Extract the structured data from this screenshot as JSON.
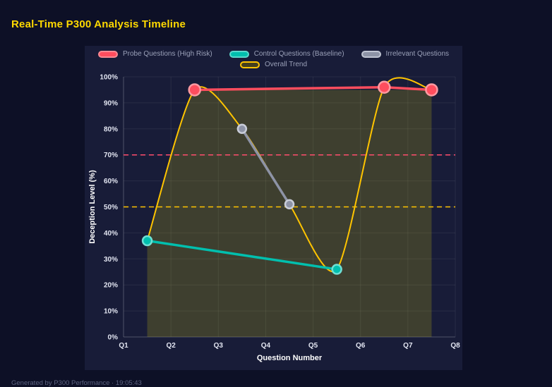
{
  "page": {
    "title": "Real-Time P300 Analysis Timeline",
    "footer": "Generated by P300 Performance · 19:05:43"
  },
  "colors": {
    "page_bg": "#0d1026",
    "panel_bg": "#181c38",
    "grid": "rgba(255,255,255,0.07)",
    "axis_line": "rgba(255,255,255,0.18)",
    "tick_text": "#e2e5f1",
    "axis_title": "#ffffff",
    "legend_text": "#9aa0b8",
    "title_text": "#ffd900",
    "footer_text": "#5d6380",
    "band_fill": "rgba(200,190,20,0.22)"
  },
  "chart_data": {
    "type": "line",
    "title": "Real-Time P300 Analysis Timeline",
    "xlabel": "Question Number",
    "ylabel": "Deception Level (%)",
    "x_range": [
      1,
      8
    ],
    "y_range": [
      0,
      100
    ],
    "x_ticks": [
      "Q1",
      "Q2",
      "Q3",
      "Q4",
      "Q5",
      "Q6",
      "Q7",
      "Q8"
    ],
    "y_ticks": [
      "0%",
      "10%",
      "20%",
      "30%",
      "40%",
      "50%",
      "60%",
      "70%",
      "80%",
      "90%",
      "100%"
    ],
    "grid": true,
    "legend_position": "top",
    "series": [
      {
        "name": "Probe Questions (High Risk)",
        "color": "#ff4d5e",
        "point_border": "#ff9aa2",
        "line_width": 3.5,
        "point_radius": 8,
        "smooth": false,
        "points": [
          [
            2.5,
            95
          ],
          [
            6.5,
            96
          ],
          [
            7.5,
            95
          ]
        ]
      },
      {
        "name": "Control Questions (Baseline)",
        "color": "#00bfae",
        "point_border": "#6fdfd4",
        "line_width": 3.5,
        "point_radius": 6.5,
        "smooth": false,
        "points": [
          [
            1.5,
            37
          ],
          [
            5.5,
            26
          ]
        ]
      },
      {
        "name": "Irrelevant Questions",
        "color": "#8d93a6",
        "point_border": "#c9cdd9",
        "line_width": 3.5,
        "point_radius": 6,
        "smooth": false,
        "points": [
          [
            3.5,
            80
          ],
          [
            4.5,
            51
          ]
        ]
      },
      {
        "name": "Overall Trend",
        "color": "#ffc400",
        "point_border": "#ffc400",
        "line_width": 2,
        "point_radius": 0,
        "smooth": true,
        "points": [
          [
            1.5,
            37
          ],
          [
            2.5,
            95
          ],
          [
            3.5,
            80
          ],
          [
            4.5,
            51
          ],
          [
            5.5,
            26
          ],
          [
            6.5,
            96
          ],
          [
            7.5,
            95
          ]
        ]
      }
    ],
    "reference_lines": [
      {
        "y": 70,
        "color": "#ff4d6d",
        "style": "dashed"
      },
      {
        "y": 50,
        "color": "#ffc400",
        "style": "dashed"
      }
    ],
    "band": {
      "x_start": 1.5,
      "x_end": 7.5,
      "y_top": 95
    }
  },
  "legend": {
    "rows": [
      [
        0,
        1,
        2
      ],
      [
        3
      ]
    ],
    "swatches": [
      {
        "fill": "#ff4d5e",
        "border": "#ff8a93"
      },
      {
        "fill": "#00bfae",
        "border": "#5ad8cc"
      },
      {
        "fill": "#8d93a6",
        "border": "#bfc4d2"
      },
      {
        "fill": "#453f1e",
        "border": "#ffc400"
      }
    ]
  }
}
